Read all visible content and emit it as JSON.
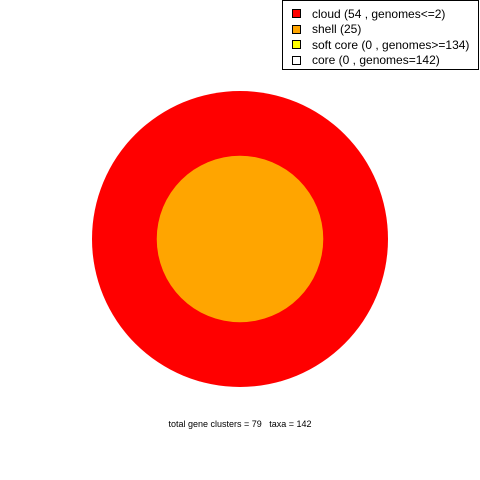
{
  "chart_data": {
    "type": "pie",
    "title": "",
    "rings": [
      {
        "name": "cloud",
        "value": 54,
        "color": "#FF0000"
      },
      {
        "name": "shell",
        "value": 25,
        "color": "#FFA500"
      },
      {
        "name": "soft core",
        "value": 0,
        "color": "#FFFF00"
      },
      {
        "name": "core",
        "value": 0,
        "color": "#FFFFFF"
      }
    ],
    "total": 79,
    "legend": [
      {
        "label": "cloud  (54 , genomes<=2)",
        "color": "#FF0000"
      },
      {
        "label": "shell  (25)",
        "color": "#FFA500"
      },
      {
        "label": "soft core  (0 , genomes>=134)",
        "color": "#FFFF00"
      },
      {
        "label": "core  (0 , genomes=142)",
        "color": "#FFFFFF"
      }
    ],
    "legend_position": "top-right",
    "caption": "total gene clusters = 79   taxa = 142"
  }
}
